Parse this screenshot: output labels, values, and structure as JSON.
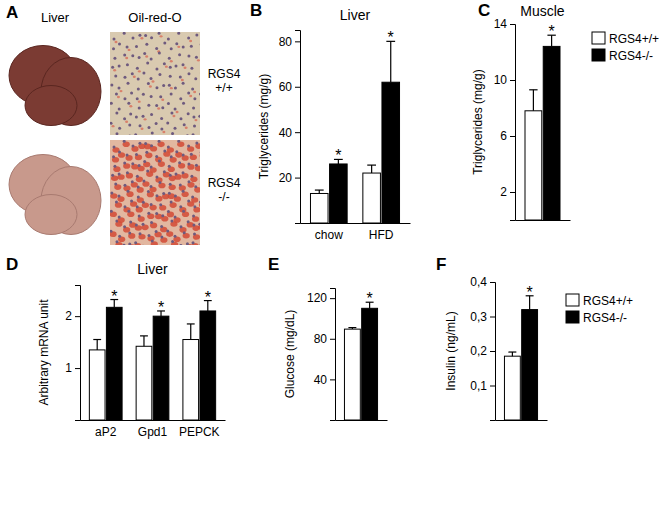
{
  "chart_data": [
    {
      "type": "image_grid",
      "panel": "A",
      "columns": [
        "Liver",
        "Oil-red-O"
      ],
      "rows": [
        "RGS4 +/+",
        "RGS4 -/-"
      ]
    },
    {
      "type": "bar",
      "panel": "B",
      "title": "Liver",
      "y_label": "Triglycerides (mg/g)",
      "categories": [
        "chow",
        "HFD"
      ],
      "series": [
        {
          "color": "#ffffff",
          "values": [
            13,
            22
          ],
          "errors": [
            1.5,
            3.5
          ]
        },
        {
          "color": "#000000",
          "values": [
            26,
            62
          ],
          "errors": [
            2,
            18
          ]
        }
      ],
      "significance": [
        "*",
        "*"
      ],
      "ylim": [
        0,
        85
      ],
      "yticks": [
        20,
        40,
        60,
        80
      ]
    },
    {
      "type": "bar",
      "panel": "C",
      "title": "Muscle",
      "y_label": "Triglycerides (mg/g)",
      "categories": [
        null
      ],
      "series": [
        {
          "name": "RGS4+/+",
          "color": "#ffffff",
          "values": [
            7.8
          ],
          "errors": [
            1.5
          ]
        },
        {
          "name": "RGS4-/-",
          "color": "#000000",
          "values": [
            12.4
          ],
          "errors": [
            0.8
          ]
        }
      ],
      "significance": [
        "*"
      ],
      "ylim": [
        0,
        14
      ],
      "yticks": [
        2,
        6,
        10,
        14
      ],
      "legend": "right"
    },
    {
      "type": "bar",
      "panel": "D",
      "title": "Liver",
      "y_label": "Arbitrary mRNA unit",
      "categories": [
        "aP2",
        "Gpd1",
        "PEPCK"
      ],
      "series": [
        {
          "color": "#ffffff",
          "values": [
            1.35,
            1.42,
            1.55
          ],
          "errors": [
            0.2,
            0.2,
            0.3
          ]
        },
        {
          "color": "#000000",
          "values": [
            2.17,
            2.0,
            2.1
          ],
          "errors": [
            0.15,
            0.1,
            0.2
          ]
        }
      ],
      "significance": [
        "*",
        "*",
        "*"
      ],
      "ylim": [
        0,
        2.6
      ],
      "yticks": [
        1,
        2
      ]
    },
    {
      "type": "bar",
      "panel": "E",
      "y_label": "Glucose (mg/dL)",
      "categories": [
        null
      ],
      "series": [
        {
          "color": "#ffffff",
          "values": [
            89.5
          ],
          "errors": [
            1.5
          ]
        },
        {
          "color": "#000000",
          "values": [
            110
          ],
          "errors": [
            6
          ]
        }
      ],
      "significance": [
        "*"
      ],
      "ylim": [
        0,
        130
      ],
      "yticks": [
        40,
        80,
        120
      ]
    },
    {
      "type": "bar",
      "panel": "F",
      "y_label": "Insulin (ng/mL)",
      "categories": [
        null
      ],
      "series": [
        {
          "name": "RGS4+/+",
          "color": "#ffffff",
          "values": [
            0.185
          ],
          "errors": [
            0.012
          ]
        },
        {
          "name": "RGS4-/-",
          "color": "#000000",
          "values": [
            0.32
          ],
          "errors": [
            0.04
          ]
        }
      ],
      "significance": [
        "*"
      ],
      "ylim": [
        0,
        0.4
      ],
      "yticks": [
        {
          "value": 0.1,
          "label": "0,1"
        },
        {
          "value": 0.2,
          "label": "0,2"
        },
        {
          "value": 0.3,
          "label": "0,3"
        },
        {
          "value": 0.4,
          "label": "0,4"
        }
      ],
      "legend": "right"
    }
  ]
}
